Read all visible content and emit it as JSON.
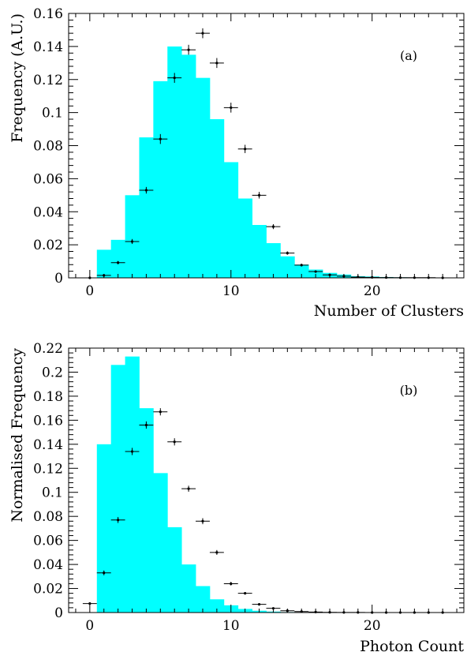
{
  "chart_data": [
    {
      "type": "bar",
      "panel_label": "(a)",
      "xlabel": "Number of Clusters",
      "ylabel": "Frequency (A.U.)",
      "xlim": [
        -1.5,
        26.5
      ],
      "ylim": [
        0,
        0.16
      ],
      "xticks": [
        0,
        10,
        20
      ],
      "yticks": [
        0,
        0.02,
        0.04,
        0.06,
        0.08,
        0.1,
        0.12,
        0.14,
        0.16
      ],
      "ytick_labels": [
        "0",
        "0.02",
        "0.04",
        "0.06",
        "0.08",
        "0.1",
        "0.12",
        "0.14",
        "0.16"
      ],
      "histogram_color": "#00ffff",
      "histogram": {
        "bin_edges": [
          0.5,
          1.5,
          2.5,
          3.5,
          4.5,
          5.5,
          6.5,
          7.5,
          8.5,
          9.5,
          10.5,
          11.5,
          12.5,
          13.5,
          14.5,
          15.5,
          16.5,
          17.5,
          18.5,
          19.5,
          20.5,
          21.5,
          22.5,
          23.5,
          24.5,
          25.5
        ],
        "values": [
          0.017,
          0.023,
          0.05,
          0.085,
          0.119,
          0.14,
          0.135,
          0.121,
          0.096,
          0.07,
          0.048,
          0.032,
          0.021,
          0.013,
          0.008,
          0.005,
          0.003,
          0.002,
          0.001,
          0.0008,
          0.0005,
          0.0003,
          0.0002,
          0.0001,
          0.0001
        ]
      },
      "points": {
        "x": [
          0,
          1,
          2,
          3,
          4,
          5,
          6,
          7,
          8,
          9,
          10,
          11,
          12,
          13,
          14,
          15,
          16,
          17,
          18,
          19,
          20,
          21,
          22,
          23,
          24,
          25
        ],
        "y": [
          0,
          0.0015,
          0.0092,
          0.022,
          0.053,
          0.084,
          0.121,
          0.138,
          0.148,
          0.13,
          0.103,
          0.078,
          0.05,
          0.031,
          0.015,
          0.0077,
          0.0038,
          0.0018,
          0.001,
          0.0005,
          0.0003,
          0.0002,
          0.0001,
          0.0001,
          0.0001,
          0
        ],
        "yerr": [
          0,
          0.0005,
          0.001,
          0.0015,
          0.002,
          0.003,
          0.003,
          0.003,
          0.003,
          0.003,
          0.003,
          0.0025,
          0.002,
          0.0015,
          0.001,
          0.0008,
          0.0005,
          0.0003,
          0.0002,
          0.0001,
          0.0001,
          0.0001,
          0,
          0,
          0,
          0
        ],
        "xerr": 0.5
      }
    },
    {
      "type": "bar",
      "panel_label": "(b)",
      "xlabel": "Photon Count",
      "ylabel": "Normalised Frequency",
      "xlim": [
        -1.5,
        26.5
      ],
      "ylim": [
        0,
        0.22
      ],
      "xticks": [
        0,
        10,
        20
      ],
      "yticks": [
        0,
        0.02,
        0.04,
        0.06,
        0.08,
        0.1,
        0.12,
        0.14,
        0.16,
        0.18,
        0.2,
        0.22
      ],
      "ytick_labels": [
        "0",
        "0.02",
        "0.04",
        "0.06",
        "0.08",
        "0.1",
        "0.12",
        "0.14",
        "0.16",
        "0.18",
        "0.2",
        "0.22"
      ],
      "histogram_color": "#00ffff",
      "histogram": {
        "bin_edges": [
          0.5,
          1.5,
          2.5,
          3.5,
          4.5,
          5.5,
          6.5,
          7.5,
          8.5,
          9.5,
          10.5,
          11.5,
          12.5,
          13.5,
          14.5,
          15.5,
          16.5,
          17.5,
          18.5,
          19.5,
          20.5,
          21.5,
          22.5,
          23.5,
          24.5,
          25.5
        ],
        "values": [
          0.14,
          0.206,
          0.213,
          0.17,
          0.116,
          0.071,
          0.04,
          0.022,
          0.011,
          0.006,
          0.003,
          0.0015,
          0.0008,
          0.0004,
          0.0002,
          0.0001,
          0.0001,
          0,
          0,
          0,
          0,
          0,
          0,
          0,
          0
        ]
      },
      "points": {
        "x": [
          0,
          1,
          2,
          3,
          4,
          5,
          6,
          7,
          8,
          9,
          10,
          11,
          12,
          13,
          14,
          15,
          16,
          17,
          18,
          19,
          20,
          21,
          22,
          23,
          24,
          25
        ],
        "y": [
          0.0075,
          0.033,
          0.077,
          0.134,
          0.156,
          0.167,
          0.142,
          0.103,
          0.076,
          0.05,
          0.024,
          0.016,
          0.0068,
          0.0035,
          0.0015,
          0.0008,
          0.0004,
          0.0002,
          0.0001,
          0.0001,
          0,
          0,
          0,
          0,
          0,
          0
        ],
        "yerr": [
          0.001,
          0.002,
          0.0025,
          0.003,
          0.003,
          0.003,
          0.003,
          0.0025,
          0.0025,
          0.002,
          0.0015,
          0.001,
          0.0008,
          0.0005,
          0.0003,
          0.0002,
          0.0001,
          0.0001,
          0,
          0,
          0,
          0,
          0,
          0,
          0,
          0
        ],
        "xerr": 0.5
      }
    }
  ]
}
